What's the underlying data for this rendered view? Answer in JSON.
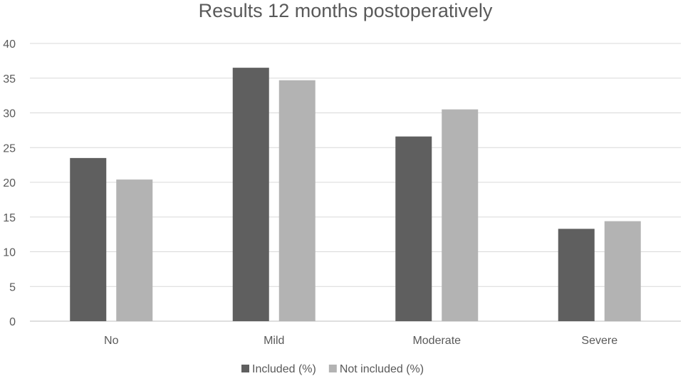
{
  "chart_data": {
    "type": "bar",
    "title": "Results 12 months postoperatively",
    "categories": [
      "No",
      "Mild",
      "Moderate",
      "Severe"
    ],
    "series": [
      {
        "name": "Included (%)",
        "values": [
          23.5,
          36.5,
          26.6,
          13.3
        ],
        "color": "#5f5f5f"
      },
      {
        "name": "Not included (%)",
        "values": [
          20.4,
          34.7,
          30.5,
          14.4
        ],
        "color": "#b3b3b3"
      }
    ],
    "ylim": [
      0,
      40
    ],
    "yticks": [
      0,
      5,
      10,
      15,
      20,
      25,
      30,
      35,
      40
    ],
    "grid": true,
    "legend": "bottom"
  }
}
